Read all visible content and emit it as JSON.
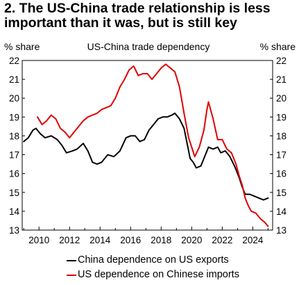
{
  "title": {
    "line1": "2. The US-China trade relationship is less",
    "line2": "important than it was, but is still key"
  },
  "chart_data": {
    "type": "line",
    "chart_title": "US-China trade dependency",
    "ylabel_left": "% share",
    "ylabel_right": "% share",
    "ylim": [
      13,
      22
    ],
    "xlim": [
      2008.9,
      2025.3
    ],
    "yticks": [
      13,
      14,
      15,
      16,
      17,
      18,
      19,
      20,
      21,
      22
    ],
    "xticks": [
      2010,
      2012,
      2014,
      2016,
      2018,
      2020,
      2022,
      2024
    ],
    "grid": false,
    "legend_position": "bottom",
    "series": [
      {
        "name": "China dependence on US exports",
        "color": "#000000",
        "points": [
          [
            2009.0,
            17.7
          ],
          [
            2009.3,
            17.9
          ],
          [
            2009.6,
            18.3
          ],
          [
            2009.8,
            18.4
          ],
          [
            2010.1,
            18.1
          ],
          [
            2010.4,
            17.9
          ],
          [
            2010.8,
            18.0
          ],
          [
            2011.2,
            17.8
          ],
          [
            2011.5,
            17.5
          ],
          [
            2011.8,
            17.1
          ],
          [
            2012.2,
            17.2
          ],
          [
            2012.5,
            17.3
          ],
          [
            2012.9,
            17.6
          ],
          [
            2013.2,
            17.2
          ],
          [
            2013.5,
            16.6
          ],
          [
            2013.8,
            16.5
          ],
          [
            2014.1,
            16.6
          ],
          [
            2014.5,
            17.0
          ],
          [
            2014.9,
            16.9
          ],
          [
            2015.3,
            17.2
          ],
          [
            2015.7,
            17.9
          ],
          [
            2016.0,
            18.0
          ],
          [
            2016.3,
            18.0
          ],
          [
            2016.6,
            17.7
          ],
          [
            2016.9,
            17.8
          ],
          [
            2017.2,
            18.3
          ],
          [
            2017.5,
            18.6
          ],
          [
            2017.8,
            18.9
          ],
          [
            2018.1,
            19.0
          ],
          [
            2018.4,
            19.0
          ],
          [
            2018.7,
            19.1
          ],
          [
            2018.9,
            19.2
          ],
          [
            2019.2,
            18.9
          ],
          [
            2019.5,
            18.4
          ],
          [
            2019.7,
            17.6
          ],
          [
            2019.9,
            16.8
          ],
          [
            2020.1,
            16.6
          ],
          [
            2020.3,
            16.3
          ],
          [
            2020.6,
            16.4
          ],
          [
            2020.9,
            17.0
          ],
          [
            2021.1,
            17.4
          ],
          [
            2021.4,
            17.3
          ],
          [
            2021.7,
            17.4
          ],
          [
            2021.9,
            17.1
          ],
          [
            2022.2,
            17.2
          ],
          [
            2022.5,
            16.9
          ],
          [
            2022.8,
            16.4
          ],
          [
            2023.1,
            15.8
          ],
          [
            2023.3,
            15.3
          ],
          [
            2023.5,
            14.9
          ],
          [
            2023.8,
            14.9
          ],
          [
            2024.1,
            14.8
          ],
          [
            2024.4,
            14.7
          ],
          [
            2024.7,
            14.6
          ],
          [
            2025.0,
            14.7
          ]
        ]
      },
      {
        "name": "US dependence on Chinese imports",
        "color": "#e00000",
        "points": [
          [
            2009.9,
            19.0
          ],
          [
            2010.2,
            18.6
          ],
          [
            2010.5,
            18.8
          ],
          [
            2010.8,
            19.1
          ],
          [
            2011.1,
            18.9
          ],
          [
            2011.4,
            18.4
          ],
          [
            2011.7,
            18.2
          ],
          [
            2012.0,
            17.9
          ],
          [
            2012.3,
            18.2
          ],
          [
            2012.6,
            18.5
          ],
          [
            2012.9,
            18.8
          ],
          [
            2013.2,
            19.0
          ],
          [
            2013.5,
            19.1
          ],
          [
            2013.8,
            19.2
          ],
          [
            2014.1,
            19.4
          ],
          [
            2014.4,
            19.5
          ],
          [
            2014.7,
            19.6
          ],
          [
            2015.0,
            20.0
          ],
          [
            2015.3,
            20.6
          ],
          [
            2015.6,
            21.0
          ],
          [
            2015.9,
            21.5
          ],
          [
            2016.2,
            21.7
          ],
          [
            2016.5,
            21.2
          ],
          [
            2016.8,
            21.3
          ],
          [
            2017.1,
            21.3
          ],
          [
            2017.4,
            21.0
          ],
          [
            2017.7,
            21.3
          ],
          [
            2018.0,
            21.6
          ],
          [
            2018.3,
            21.8
          ],
          [
            2018.6,
            21.6
          ],
          [
            2018.9,
            21.4
          ],
          [
            2019.2,
            20.6
          ],
          [
            2019.5,
            19.2
          ],
          [
            2019.8,
            17.9
          ],
          [
            2020.0,
            17.4
          ],
          [
            2020.2,
            16.9
          ],
          [
            2020.5,
            17.4
          ],
          [
            2020.8,
            18.3
          ],
          [
            2021.0,
            19.4
          ],
          [
            2021.1,
            19.8
          ],
          [
            2021.4,
            18.9
          ],
          [
            2021.7,
            17.8
          ],
          [
            2022.0,
            17.8
          ],
          [
            2022.3,
            17.3
          ],
          [
            2022.6,
            17.1
          ],
          [
            2022.9,
            16.5
          ],
          [
            2023.1,
            15.9
          ],
          [
            2023.3,
            15.4
          ],
          [
            2023.5,
            14.7
          ],
          [
            2023.7,
            14.3
          ],
          [
            2023.9,
            14.0
          ],
          [
            2024.2,
            13.9
          ],
          [
            2024.5,
            13.6
          ],
          [
            2024.8,
            13.4
          ],
          [
            2025.0,
            13.2
          ]
        ]
      }
    ]
  }
}
